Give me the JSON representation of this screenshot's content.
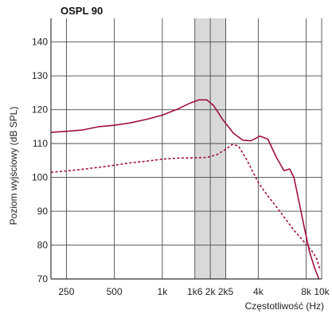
{
  "chart_data": {
    "type": "line",
    "title": "OSPL 90",
    "ylabel": "Poziom wyjściowy (dB SPL)",
    "xlabel": "Częstotliwość (Hz)",
    "x_scale": "log",
    "xlim": [
      200,
      10000
    ],
    "ylim": [
      70,
      147
    ],
    "x_ticks": [
      {
        "value": 250,
        "label": "250"
      },
      {
        "value": 500,
        "label": "500"
      },
      {
        "value": 1000,
        "label": "1k"
      },
      {
        "value": 1600,
        "label": "1k6"
      },
      {
        "value": 2000,
        "label": "2k"
      },
      {
        "value": 2500,
        "label": "2k5"
      },
      {
        "value": 4000,
        "label": "4k"
      },
      {
        "value": 8000,
        "label": "8k"
      },
      {
        "value": 10000,
        "label": "10k"
      }
    ],
    "y_ticks": [
      70,
      80,
      90,
      100,
      110,
      120,
      130,
      140
    ],
    "grid": true,
    "shaded_band": {
      "x_start": 1600,
      "x_end": 2500,
      "color": "#d9d9d9"
    },
    "series": [
      {
        "style": "solid",
        "color": "#a0103a",
        "x": [
          200,
          250,
          315,
          400,
          500,
          630,
          800,
          1000,
          1250,
          1500,
          1700,
          1900,
          2100,
          2400,
          2800,
          3200,
          3600,
          4100,
          4600,
          5200,
          5800,
          6300,
          6700,
          7200,
          7800,
          8400,
          9000,
          9600
        ],
        "y": [
          113.3,
          113.6,
          114.0,
          115.0,
          115.4,
          116.1,
          117.2,
          118.4,
          120.2,
          122.0,
          122.9,
          122.9,
          121.2,
          117.0,
          113.0,
          111.0,
          110.8,
          112.2,
          111.3,
          105.9,
          102.0,
          102.5,
          100.0,
          93.0,
          85.0,
          78.0,
          73.5,
          70.0
        ]
      },
      {
        "style": "dashed",
        "color": "#a0103a",
        "x": [
          200,
          250,
          315,
          400,
          500,
          630,
          800,
          1000,
          1250,
          1600,
          1900,
          2200,
          2500,
          2750,
          3000,
          3400,
          4000,
          4600,
          5200,
          6000,
          6800,
          7500,
          8100,
          8700,
          9300,
          9800
        ],
        "y": [
          101.5,
          101.9,
          102.4,
          103.0,
          103.6,
          104.3,
          104.8,
          105.4,
          105.7,
          105.8,
          105.9,
          106.7,
          108.3,
          109.7,
          109.3,
          105.1,
          98.5,
          94.5,
          91.3,
          87.4,
          84.0,
          81.8,
          79.9,
          78.2,
          76.0,
          72.5
        ]
      }
    ]
  }
}
